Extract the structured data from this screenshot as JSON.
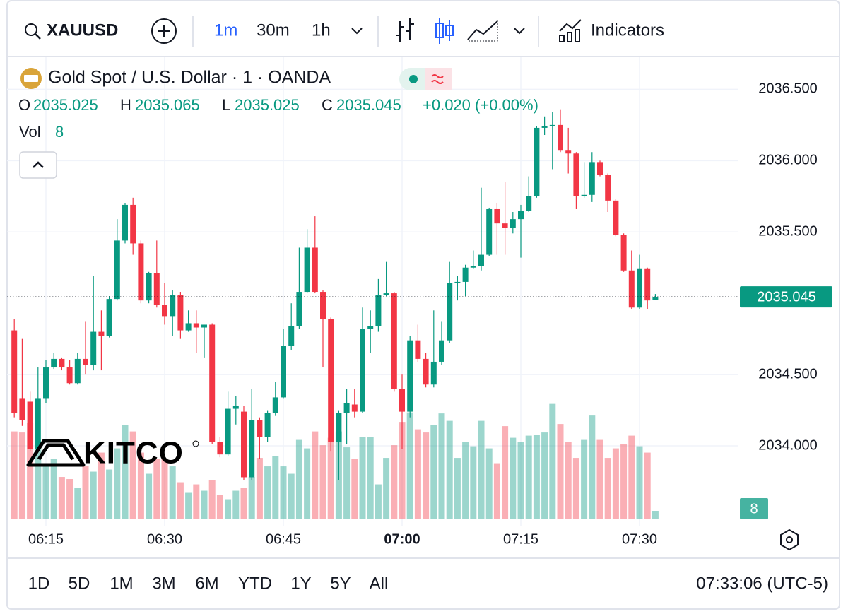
{
  "toolbar": {
    "symbol": "XAUUSD",
    "intervals": [
      "1m",
      "30m",
      "1h"
    ],
    "indicators": "Indicators"
  },
  "ranges": [
    "1D",
    "5D",
    "1M",
    "3M",
    "6M",
    "YTD",
    "1Y",
    "5Y",
    "All"
  ],
  "clock": "07:33:06 (UTC-5)",
  "logo": "KITCO",
  "chart_data": {
    "type": "candlestick",
    "title": "Gold Spot / U.S. Dollar · 1 · OANDA",
    "legend_labels": [
      "O",
      "H",
      "L",
      "C"
    ],
    "change": "+0.020 (+0.00%)",
    "volume_label": "Vol",
    "up_color": "#089981",
    "down_color": "#f23645",
    "grid": true,
    "x": [
      "06:11",
      "06:12",
      "06:13",
      "06:14",
      "06:15",
      "06:16",
      "06:17",
      "06:18",
      "06:19",
      "06:20",
      "06:21",
      "06:22",
      "06:23",
      "06:24",
      "06:25",
      "06:26",
      "06:27",
      "06:28",
      "06:29",
      "06:30",
      "06:31",
      "06:32",
      "06:33",
      "06:34",
      "06:35",
      "06:36",
      "06:37",
      "06:38",
      "06:39",
      "06:40",
      "06:41",
      "06:42",
      "06:43",
      "06:44",
      "06:45",
      "06:46",
      "06:47",
      "06:48",
      "06:49",
      "06:50",
      "06:51",
      "06:52",
      "06:53",
      "06:54",
      "06:55",
      "06:56",
      "06:57",
      "06:58",
      "06:59",
      "07:00",
      "07:01",
      "07:02",
      "07:03",
      "07:04",
      "07:05",
      "07:06",
      "07:07",
      "07:08",
      "07:09",
      "07:10",
      "07:11",
      "07:12",
      "07:13",
      "07:14",
      "07:15",
      "07:16",
      "07:17",
      "07:18",
      "07:19",
      "07:20",
      "07:21",
      "07:22",
      "07:23",
      "07:24",
      "07:25",
      "07:26",
      "07:27",
      "07:28",
      "07:29",
      "07:30",
      "07:31",
      "07:32"
    ],
    "open": [
      2034.81,
      2034.33,
      2034.31,
      2033.98,
      2034.33,
      2034.55,
      2034.61,
      2034.55,
      2034.44,
      2034.61,
      2034.57,
      2034.8,
      2034.77,
      2035.03,
      2035.44,
      2035.69,
      2035.42,
      2035.02,
      2035.21,
      2034.99,
      2034.91,
      2035.06,
      2034.81,
      2034.86,
      2034.83,
      2034.85,
      2034.03,
      2033.94,
      2034.26,
      2034.24,
      2033.78,
      2034.18,
      2034.06,
      2034.23,
      2034.34,
      2034.7,
      2034.84,
      2035.08,
      2035.39,
      2035.08,
      2034.89,
      2034.03,
      2034.23,
      2034.29,
      2034.24,
      2034.82,
      2034.84,
      2035.06,
      2035.07,
      2034.4,
      2034.24,
      2034.74,
      2034.61,
      2034.43,
      2034.59,
      2034.74,
      2035.14,
      2035.15,
      2035.25,
      2035.26,
      2035.34,
      2035.66,
      2035.56,
      2035.53,
      2035.59,
      2035.65,
      2035.75,
      2036.23,
      2036.24,
      2036.25,
      2036.07,
      2036.05,
      2035.75,
      2035.76,
      2035.99,
      2035.9,
      2035.72,
      2035.48,
      2035.23,
      2034.97,
      2035.24,
      2035.025
    ],
    "high": [
      2034.89,
      2034.75,
      2034.38,
      2034.55,
      2034.6,
      2034.65,
      2034.62,
      2034.6,
      2034.65,
      2034.87,
      2035.19,
      2034.95,
      2035.05,
      2035.59,
      2035.7,
      2035.74,
      2035.44,
      2035.22,
      2035.44,
      2035.14,
      2035.09,
      2035.08,
      2034.95,
      2034.95,
      2034.85,
      2034.86,
      2034.06,
      2034.38,
      2034.35,
      2034.28,
      2034.4,
      2034.2,
      2034.25,
      2034.45,
      2034.82,
      2035.0,
      2035.39,
      2035.52,
      2035.61,
      2035.09,
      2034.9,
      2034.25,
      2034.4,
      2034.4,
      2034.97,
      2034.95,
      2035.17,
      2035.29,
      2035.08,
      2034.5,
      2034.77,
      2034.85,
      2034.65,
      2034.95,
      2034.87,
      2035.29,
      2035.19,
      2035.27,
      2035.37,
      2035.81,
      2035.67,
      2035.7,
      2035.85,
      2035.64,
      2035.69,
      2035.89,
      2036.24,
      2036.31,
      2036.34,
      2036.36,
      2036.23,
      2036.06,
      2035.99,
      2036.06,
      2036.0,
      2035.91,
      2035.73,
      2035.49,
      2035.37,
      2035.34,
      2035.25,
      2035.065
    ],
    "low": [
      2034.2,
      2034.14,
      2033.96,
      2033.96,
      2034.3,
      2034.54,
      2034.53,
      2034.43,
      2034.43,
      2034.5,
      2034.53,
      2034.53,
      2034.76,
      2035.02,
      2035.42,
      2035.34,
      2035.0,
      2035.0,
      2034.97,
      2034.85,
      2034.77,
      2034.75,
      2034.8,
      2034.65,
      2034.62,
      2034.01,
      2033.92,
      2033.93,
      2034.15,
      2033.76,
      2033.76,
      2033.91,
      2034.03,
      2034.21,
      2034.33,
      2034.67,
      2034.82,
      2035.07,
      2035.07,
      2034.55,
      2033.96,
      2033.76,
      2034.01,
      2034.2,
      2034.23,
      2034.65,
      2034.8,
      2035.05,
      2034.38,
      2033.98,
      2034.2,
      2034.59,
      2034.41,
      2034.41,
      2034.57,
      2034.72,
      2035.02,
      2035.05,
      2035.24,
      2035.23,
      2035.33,
      2035.34,
      2035.34,
      2035.49,
      2035.32,
      2035.64,
      2035.74,
      2036.18,
      2035.94,
      2036.06,
      2035.91,
      2035.66,
      2035.74,
      2035.71,
      2035.89,
      2035.64,
      2035.47,
      2035.22,
      2034.96,
      2034.96,
      2034.96,
      2035.025
    ],
    "close": [
      2034.23,
      2034.18,
      2033.98,
      2034.33,
      2034.55,
      2034.61,
      2034.55,
      2034.44,
      2034.61,
      2034.57,
      2034.8,
      2034.77,
      2035.03,
      2035.44,
      2035.69,
      2035.42,
      2035.02,
      2035.21,
      2034.99,
      2034.91,
      2035.06,
      2034.81,
      2034.86,
      2034.83,
      2034.85,
      2034.03,
      2033.94,
      2034.26,
      2034.28,
      2033.78,
      2034.18,
      2034.06,
      2034.23,
      2034.34,
      2034.7,
      2034.84,
      2035.08,
      2035.39,
      2035.08,
      2034.89,
      2034.03,
      2034.23,
      2034.3,
      2034.24,
      2034.82,
      2034.84,
      2035.06,
      2035.07,
      2034.4,
      2034.24,
      2034.74,
      2034.61,
      2034.43,
      2034.59,
      2034.74,
      2035.14,
      2035.15,
      2035.25,
      2035.26,
      2035.34,
      2035.66,
      2035.56,
      2035.53,
      2035.59,
      2035.65,
      2035.75,
      2036.23,
      2036.24,
      2036.25,
      2036.07,
      2036.05,
      2035.75,
      2035.76,
      2035.99,
      2035.9,
      2035.72,
      2035.48,
      2035.23,
      2034.97,
      2035.24,
      2035.02,
      2035.045
    ],
    "volume": [
      83,
      82,
      91,
      73,
      50,
      57,
      40,
      38,
      30,
      50,
      45,
      63,
      47,
      67,
      89,
      83,
      63,
      43,
      57,
      57,
      50,
      35,
      25,
      33,
      27,
      37,
      23,
      19,
      27,
      30,
      40,
      58,
      50,
      60,
      50,
      43,
      75,
      67,
      83,
      70,
      77,
      83,
      68,
      57,
      78,
      78,
      33,
      58,
      70,
      92,
      101,
      85,
      82,
      89,
      100,
      93,
      58,
      73,
      69,
      93,
      67,
      53,
      88,
      77,
      73,
      79,
      80,
      82,
      109,
      90,
      73,
      58,
      75,
      98,
      75,
      58,
      67,
      71,
      79,
      69,
      63,
      8
    ],
    "ylim": [
      2033.485,
      2036.73
    ],
    "yticks": [
      {
        "value": 2036.5,
        "label": "2036.500"
      },
      {
        "value": 2036.0,
        "label": "2036.000"
      },
      {
        "value": 2035.5,
        "label": "2035.500"
      },
      {
        "value": 2034.5,
        "label": "2034.500"
      },
      {
        "value": 2034.0,
        "label": "2034.000"
      }
    ],
    "y2lim": [
      0,
      437
    ],
    "xticks": [
      "06:15",
      "06:30",
      "06:45",
      "07:00",
      "07:15",
      "07:30"
    ]
  }
}
